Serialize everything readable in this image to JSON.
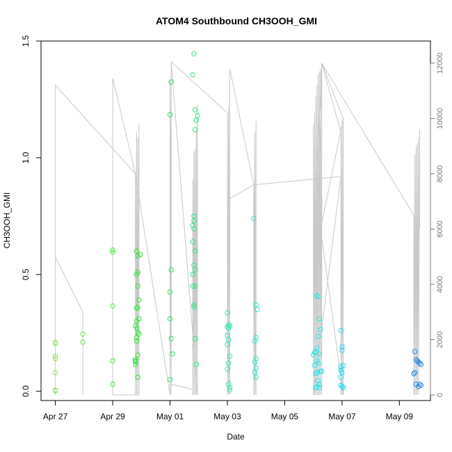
{
  "chart_data": {
    "type": "scatter",
    "title": "ATOM4 Southbound CH3OOH_GMI",
    "xlabel": "Date",
    "ylabel": "CH3OOH_GMI",
    "x_ticks": [
      "Apr 27",
      "Apr 29",
      "May 01",
      "May 03",
      "May 05",
      "May 07",
      "May 09"
    ],
    "y_ticks": [
      "0.0",
      "0.5",
      "1.0",
      "1.5"
    ],
    "y_right_ticks": [
      "0",
      "2000",
      "4000",
      "6000",
      "8000",
      "10000",
      "12000"
    ],
    "xlim": [
      "2018-04-26T12:00",
      "2018-05-10T02:00"
    ],
    "ylim": [
      -0.04,
      1.5
    ],
    "y_right_lim": [
      -200,
      12800
    ],
    "secondary_series_color": "#c8c8c8",
    "point_color_gradient": [
      "#8be84a",
      "#28e63a",
      "#35e8c0",
      "#1fe8f0",
      "#2a86e0"
    ],
    "grid": false,
    "points": [
      {
        "x": "2018-04-27T00:00",
        "y": 0.21
      },
      {
        "x": "2018-04-27T00:00",
        "y": 0.205
      },
      {
        "x": "2018-04-27T00:00",
        "y": 0.15
      },
      {
        "x": "2018-04-27T00:00",
        "y": 0.14
      },
      {
        "x": "2018-04-27T00:00",
        "y": 0.08
      },
      {
        "x": "2018-04-27T00:00",
        "y": 0.005
      },
      {
        "x": "2018-04-27T00:00",
        "y": 0.002
      },
      {
        "x": "2018-04-27T23:00",
        "y": 0.245
      },
      {
        "x": "2018-04-27T23:00",
        "y": 0.21
      },
      {
        "x": "2018-04-29T00:00",
        "y": 0.605
      },
      {
        "x": "2018-04-29T00:00",
        "y": 0.595
      },
      {
        "x": "2018-04-29T00:00",
        "y": 0.365
      },
      {
        "x": "2018-04-29T00:00",
        "y": 0.13
      },
      {
        "x": "2018-04-29T00:00",
        "y": 0.03
      },
      {
        "x": "2018-04-29T20:00",
        "y": 0.6
      },
      {
        "x": "2018-04-29T21:00",
        "y": 0.58
      },
      {
        "x": "2018-04-29T21:00",
        "y": 0.51
      },
      {
        "x": "2018-04-29T20:00",
        "y": 0.5
      },
      {
        "x": "2018-04-29T21:00",
        "y": 0.45
      },
      {
        "x": "2018-04-29T22:00",
        "y": 0.39
      },
      {
        "x": "2018-04-29T21:00",
        "y": 0.36
      },
      {
        "x": "2018-04-29T20:00",
        "y": 0.355
      },
      {
        "x": "2018-04-29T22:00",
        "y": 0.31
      },
      {
        "x": "2018-04-29T20:00",
        "y": 0.3
      },
      {
        "x": "2018-04-29T19:00",
        "y": 0.28
      },
      {
        "x": "2018-04-29T20:00",
        "y": 0.27
      },
      {
        "x": "2018-04-29T21:00",
        "y": 0.25
      },
      {
        "x": "2018-04-29T22:00",
        "y": 0.245
      },
      {
        "x": "2018-04-29T20:00",
        "y": 0.23
      },
      {
        "x": "2018-04-29T20:00",
        "y": 0.215
      },
      {
        "x": "2018-04-29T21:00",
        "y": 0.155
      },
      {
        "x": "2018-04-29T19:00",
        "y": 0.135
      },
      {
        "x": "2018-04-29T19:00",
        "y": 0.13
      },
      {
        "x": "2018-04-29T19:00",
        "y": 0.125
      },
      {
        "x": "2018-04-29T19:00",
        "y": 0.115
      },
      {
        "x": "2018-04-29T21:00",
        "y": 0.06
      },
      {
        "x": "2018-04-29T23:00",
        "y": 0.585
      },
      {
        "x": "2018-05-01T00:00",
        "y": 1.185
      },
      {
        "x": "2018-05-01T01:00",
        "y": 1.325
      },
      {
        "x": "2018-05-01T01:00",
        "y": 0.52
      },
      {
        "x": "2018-05-01T00:00",
        "y": 0.425
      },
      {
        "x": "2018-05-01T00:00",
        "y": 0.31
      },
      {
        "x": "2018-05-01T01:00",
        "y": 0.225
      },
      {
        "x": "2018-05-01T02:00",
        "y": 0.16
      },
      {
        "x": "2018-05-01T00:00",
        "y": 0.05
      },
      {
        "x": "2018-05-01T20:00",
        "y": 1.445
      },
      {
        "x": "2018-05-01T19:00",
        "y": 1.355
      },
      {
        "x": "2018-05-01T21:00",
        "y": 1.205
      },
      {
        "x": "2018-05-01T23:00",
        "y": 1.18
      },
      {
        "x": "2018-05-01T22:00",
        "y": 1.16
      },
      {
        "x": "2018-05-01T21:00",
        "y": 1.12
      },
      {
        "x": "2018-05-01T20:00",
        "y": 0.75
      },
      {
        "x": "2018-05-01T20:00",
        "y": 0.73
      },
      {
        "x": "2018-05-01T19:00",
        "y": 0.71
      },
      {
        "x": "2018-05-01T20:00",
        "y": 0.695
      },
      {
        "x": "2018-05-01T19:00",
        "y": 0.64
      },
      {
        "x": "2018-05-01T21:00",
        "y": 0.6
      },
      {
        "x": "2018-05-01T20:00",
        "y": 0.54
      },
      {
        "x": "2018-05-01T21:00",
        "y": 0.52
      },
      {
        "x": "2018-05-01T19:00",
        "y": 0.5
      },
      {
        "x": "2018-05-01T19:00",
        "y": 0.45
      },
      {
        "x": "2018-05-01T21:00",
        "y": 0.45
      },
      {
        "x": "2018-05-01T20:00",
        "y": 0.37
      },
      {
        "x": "2018-05-01T20:00",
        "y": 0.36
      },
      {
        "x": "2018-05-01T21:00",
        "y": 0.225
      },
      {
        "x": "2018-05-01T22:00",
        "y": 0.115
      },
      {
        "x": "2018-05-03T00:00",
        "y": 0.335
      },
      {
        "x": "2018-05-03T01:00",
        "y": 0.285
      },
      {
        "x": "2018-05-03T02:00",
        "y": 0.28
      },
      {
        "x": "2018-05-03T00:00",
        "y": 0.275
      },
      {
        "x": "2018-05-03T01:00",
        "y": 0.27
      },
      {
        "x": "2018-05-03T00:00",
        "y": 0.24
      },
      {
        "x": "2018-05-03T01:00",
        "y": 0.22
      },
      {
        "x": "2018-05-03T00:00",
        "y": 0.2
      },
      {
        "x": "2018-05-03T02:00",
        "y": 0.15
      },
      {
        "x": "2018-05-03T01:00",
        "y": 0.12
      },
      {
        "x": "2018-05-03T00:00",
        "y": 0.095
      },
      {
        "x": "2018-05-03T01:00",
        "y": 0.03
      },
      {
        "x": "2018-05-03T02:00",
        "y": 0.015
      },
      {
        "x": "2018-05-03T02:00",
        "y": 0.005
      },
      {
        "x": "2018-05-03T22:00",
        "y": 0.74
      },
      {
        "x": "2018-05-04T00:00",
        "y": 0.37
      },
      {
        "x": "2018-05-04T01:00",
        "y": 0.35
      },
      {
        "x": "2018-05-04T00:00",
        "y": 0.23
      },
      {
        "x": "2018-05-03T23:00",
        "y": 0.215
      },
      {
        "x": "2018-05-04T00:00",
        "y": 0.14
      },
      {
        "x": "2018-05-03T23:00",
        "y": 0.125
      },
      {
        "x": "2018-05-04T00:00",
        "y": 0.1
      },
      {
        "x": "2018-05-03T23:00",
        "y": 0.08
      },
      {
        "x": "2018-05-04T00:00",
        "y": 0.06
      },
      {
        "x": "2018-05-06T03:00",
        "y": 0.41
      },
      {
        "x": "2018-05-06T04:00",
        "y": 0.405
      },
      {
        "x": "2018-05-06T05:00",
        "y": 0.31
      },
      {
        "x": "2018-05-06T06:00",
        "y": 0.265
      },
      {
        "x": "2018-05-06T04:00",
        "y": 0.235
      },
      {
        "x": "2018-05-06T03:00",
        "y": 0.185
      },
      {
        "x": "2018-05-06T02:00",
        "y": 0.17
      },
      {
        "x": "2018-05-06T01:00",
        "y": 0.165
      },
      {
        "x": "2018-05-06T05:00",
        "y": 0.16
      },
      {
        "x": "2018-05-06T00:00",
        "y": 0.155
      },
      {
        "x": "2018-05-06T03:00",
        "y": 0.13
      },
      {
        "x": "2018-05-06T04:00",
        "y": 0.12
      },
      {
        "x": "2018-05-06T01:00",
        "y": 0.11
      },
      {
        "x": "2018-05-06T06:00",
        "y": 0.085
      },
      {
        "x": "2018-05-06T07:00",
        "y": 0.085
      },
      {
        "x": "2018-05-06T03:00",
        "y": 0.08
      },
      {
        "x": "2018-05-06T02:00",
        "y": 0.075
      },
      {
        "x": "2018-05-06T04:00",
        "y": 0.045
      },
      {
        "x": "2018-05-06T05:00",
        "y": 0.03
      },
      {
        "x": "2018-05-06T03:00",
        "y": 0.02
      },
      {
        "x": "2018-05-06T02:00",
        "y": 0.015
      },
      {
        "x": "2018-05-06T05:00",
        "y": 0.015
      },
      {
        "x": "2018-05-06T23:00",
        "y": 0.26
      },
      {
        "x": "2018-05-07T00:00",
        "y": 0.19
      },
      {
        "x": "2018-05-07T00:00",
        "y": 0.175
      },
      {
        "x": "2018-05-07T01:00",
        "y": 0.11
      },
      {
        "x": "2018-05-06T23:00",
        "y": 0.105
      },
      {
        "x": "2018-05-06T23:00",
        "y": 0.09
      },
      {
        "x": "2018-05-07T00:00",
        "y": 0.08
      },
      {
        "x": "2018-05-06T23:00",
        "y": 0.06
      },
      {
        "x": "2018-05-07T00:00",
        "y": 0.02
      },
      {
        "x": "2018-05-07T01:00",
        "y": 0.015
      },
      {
        "x": "2018-05-06T23:00",
        "y": 0.025
      },
      {
        "x": "2018-05-07T01:00",
        "y": 0.015
      },
      {
        "x": "2018-05-09T13:00",
        "y": 0.17
      },
      {
        "x": "2018-05-09T14:00",
        "y": 0.135
      },
      {
        "x": "2018-05-09T15:00",
        "y": 0.13
      },
      {
        "x": "2018-05-09T16:00",
        "y": 0.125
      },
      {
        "x": "2018-05-09T17:00",
        "y": 0.12
      },
      {
        "x": "2018-05-09T18:00",
        "y": 0.115
      },
      {
        "x": "2018-05-09T13:00",
        "y": 0.08
      },
      {
        "x": "2018-05-09T12:00",
        "y": 0.075
      },
      {
        "x": "2018-05-09T14:00",
        "y": 0.03
      },
      {
        "x": "2018-05-09T17:00",
        "y": 0.03
      },
      {
        "x": "2018-05-09T18:00",
        "y": 0.025
      },
      {
        "x": "2018-05-09T16:00",
        "y": 0.02
      }
    ],
    "secondary_series": [
      [
        "2018-04-27T00:00",
        0
      ],
      [
        "2018-04-27T00:00",
        5000
      ],
      [
        "2018-04-27T23:00",
        3000
      ],
      [
        "2018-04-27T23:00",
        0
      ],
      [
        "2018-04-27T23:00",
        3000
      ],
      [
        "2018-04-27T00:00",
        5000
      ],
      [
        "2018-04-27T00:00",
        11200
      ],
      [
        "2018-04-29T19:00",
        8000
      ],
      [
        "2018-04-29T19:00",
        0
      ],
      [
        "2018-04-29T20:00",
        9500
      ],
      [
        "2018-04-29T20:00",
        0
      ],
      [
        "2018-04-29T21:00",
        9300
      ],
      [
        "2018-04-29T21:00",
        0
      ],
      [
        "2018-04-29T22:00",
        9800
      ],
      [
        "2018-04-29T22:00",
        0
      ],
      [
        "2018-04-29T00:00",
        0
      ],
      [
        "2018-04-29T00:00",
        11450
      ],
      [
        "2018-04-29T19:00",
        8000
      ],
      [
        "2018-05-01T00:00",
        0
      ],
      [
        "2018-05-01T00:00",
        11400
      ],
      [
        "2018-05-01T01:00",
        0
      ],
      [
        "2018-05-01T01:00",
        12050
      ],
      [
        "2018-05-01T00:00",
        0
      ],
      [
        "2018-05-01T00:00",
        400
      ],
      [
        "2018-05-01T19:00",
        200
      ],
      [
        "2018-05-01T19:00",
        7800
      ],
      [
        "2018-05-01T19:00",
        0
      ],
      [
        "2018-05-01T20:00",
        8800
      ],
      [
        "2018-05-01T20:00",
        0
      ],
      [
        "2018-05-01T21:00",
        8900
      ],
      [
        "2018-05-01T21:00",
        0
      ],
      [
        "2018-05-01T22:00",
        9600
      ],
      [
        "2018-05-01T22:00",
        0
      ],
      [
        "2018-05-01T23:00",
        10500
      ],
      [
        "2018-05-01T23:00",
        0
      ],
      [
        "2018-05-01T01:00",
        12050
      ],
      [
        "2018-05-03T00:00",
        10200
      ],
      [
        "2018-05-03T00:00",
        0
      ],
      [
        "2018-05-03T01:00",
        10400
      ],
      [
        "2018-05-03T01:00",
        0
      ],
      [
        "2018-05-03T02:00",
        11800
      ],
      [
        "2018-05-03T02:00",
        0
      ],
      [
        "2018-05-03T00:00",
        6000
      ],
      [
        "2018-05-03T01:00",
        5000
      ],
      [
        "2018-05-03T02:00",
        7100
      ],
      [
        "2018-05-03T22:00",
        7600
      ],
      [
        "2018-05-03T22:00",
        0
      ],
      [
        "2018-05-03T23:00",
        9500
      ],
      [
        "2018-05-03T23:00",
        0
      ],
      [
        "2018-05-04T00:00",
        9900
      ],
      [
        "2018-05-04T00:00",
        0
      ],
      [
        "2018-05-03T22:00",
        7600
      ],
      [
        "2018-05-03T02:00",
        11800
      ],
      [
        "2018-05-03T22:00",
        7600
      ],
      [
        "2018-05-06T23:00",
        7900
      ],
      [
        "2018-05-06T00:00",
        0
      ],
      [
        "2018-05-06T00:00",
        9800
      ],
      [
        "2018-05-06T01:00",
        0
      ],
      [
        "2018-05-06T01:00",
        10200
      ],
      [
        "2018-05-06T02:00",
        0
      ],
      [
        "2018-05-06T02:00",
        10800
      ],
      [
        "2018-05-06T03:00",
        0
      ],
      [
        "2018-05-06T03:00",
        11200
      ],
      [
        "2018-05-06T04:00",
        0
      ],
      [
        "2018-05-06T04:00",
        11600
      ],
      [
        "2018-05-06T05:00",
        0
      ],
      [
        "2018-05-06T05:00",
        11700
      ],
      [
        "2018-05-06T06:00",
        0
      ],
      [
        "2018-05-06T06:00",
        11800
      ],
      [
        "2018-05-06T07:00",
        0
      ],
      [
        "2018-05-06T07:00",
        12000
      ],
      [
        "2018-05-06T00:00",
        5200
      ],
      [
        "2018-05-06T04:00",
        6000
      ],
      [
        "2018-05-06T07:00",
        12000
      ],
      [
        "2018-05-06T23:00",
        9500
      ],
      [
        "2018-05-06T23:00",
        0
      ],
      [
        "2018-05-07T00:00",
        9900
      ],
      [
        "2018-05-07T00:00",
        0
      ],
      [
        "2018-05-07T01:00",
        10000
      ],
      [
        "2018-05-07T01:00",
        0
      ],
      [
        "2018-05-06T06:00",
        6000
      ],
      [
        "2018-05-07T01:00",
        10000
      ],
      [
        "2018-05-06T07:00",
        12000
      ],
      [
        "2018-05-09T12:00",
        6500
      ],
      [
        "2018-05-09T12:00",
        0
      ],
      [
        "2018-05-09T13:00",
        8700
      ],
      [
        "2018-05-09T13:00",
        0
      ],
      [
        "2018-05-09T14:00",
        9000
      ],
      [
        "2018-05-09T14:00",
        0
      ],
      [
        "2018-05-09T15:00",
        9100
      ],
      [
        "2018-05-09T15:00",
        0
      ],
      [
        "2018-05-09T16:00",
        9300
      ],
      [
        "2018-05-09T16:00",
        0
      ],
      [
        "2018-05-09T17:00",
        9600
      ],
      [
        "2018-05-09T17:00",
        6000
      ]
    ]
  }
}
